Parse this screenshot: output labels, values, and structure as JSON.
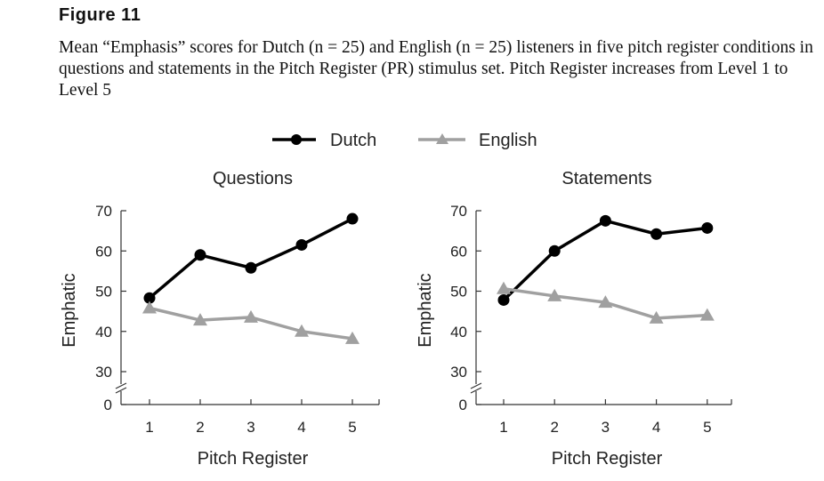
{
  "figure": {
    "label": "Figure 11",
    "caption": "Mean “Emphasis” scores for Dutch (n = 25) and English (n = 25) listeners in five pitch register conditions in questions and statements in the Pitch Register (PR) stimulus set. Pitch Register increases from Level 1 to Level 5"
  },
  "legend": {
    "dutch_label": "Dutch",
    "english_label": "English",
    "placement": "top-center"
  },
  "colors": {
    "dutch": "#000000",
    "english": "#a0a0a0"
  },
  "chart_data": [
    {
      "type": "line",
      "title": "Questions",
      "xlabel": "Pitch Register",
      "ylabel": "Emphatic",
      "x": [
        1,
        2,
        3,
        4,
        5
      ],
      "yticks": [
        0,
        30,
        40,
        50,
        60,
        70
      ],
      "ylim": [
        0,
        70
      ],
      "axis_break": true,
      "series": [
        {
          "name": "Dutch",
          "marker": "circle",
          "values": [
            48.3,
            59.0,
            55.8,
            61.5,
            68.0
          ]
        },
        {
          "name": "English",
          "marker": "triangle",
          "values": [
            45.8,
            42.8,
            43.5,
            40.0,
            38.2
          ]
        }
      ]
    },
    {
      "type": "line",
      "title": "Statements",
      "xlabel": "Pitch Register",
      "ylabel": "Emphatic",
      "x": [
        1,
        2,
        3,
        4,
        5
      ],
      "yticks": [
        0,
        30,
        40,
        50,
        60,
        70
      ],
      "ylim": [
        0,
        70
      ],
      "axis_break": true,
      "series": [
        {
          "name": "Dutch",
          "marker": "circle",
          "values": [
            47.8,
            60.0,
            67.5,
            64.2,
            65.7
          ]
        },
        {
          "name": "English",
          "marker": "triangle",
          "values": [
            50.6,
            48.8,
            47.2,
            43.3,
            44.0
          ]
        }
      ]
    }
  ]
}
